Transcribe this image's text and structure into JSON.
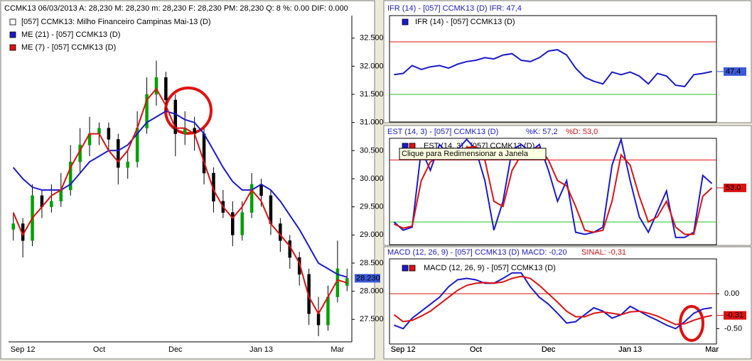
{
  "tooltip": "Clique para Redimensionar a Janela",
  "chart_data": [
    {
      "type": "candlestick",
      "title": "CCMK13   06/03/2013   A: 28,230   M: 28,230   m: 28,230   F: 28,230   PM: 28,230   Q: 8   %: 0.00   DIF: 0.000",
      "legend": "[057] CCMK13: Milho Financeiro Campinas Mai-13     (D)",
      "categories": [
        null,
        "Sep 12",
        null,
        null,
        null,
        null,
        null,
        null,
        null,
        "Oct",
        null,
        null,
        null,
        null,
        null,
        null,
        null,
        "Dec",
        null,
        null,
        null,
        null,
        null,
        null,
        null,
        null,
        "Jan 13",
        null,
        null,
        null,
        null,
        null,
        null,
        null,
        "Mar",
        null
      ],
      "open": [
        29.1,
        29.2,
        28.9,
        29.7,
        29.5,
        29.6,
        29.8,
        30.3,
        30.6,
        30.8,
        30.9,
        30.7,
        30.2,
        30.3,
        30.9,
        31.5,
        31.8,
        31.4,
        30.8,
        30.9,
        30.8,
        30.1,
        29.6,
        29.4,
        29.0,
        29.4,
        29.9,
        29.7,
        29.2,
        28.9,
        28.6,
        28.3,
        27.6,
        27.4,
        27.9,
        28.1
      ],
      "high": [
        29.4,
        29.3,
        29.9,
        29.8,
        29.9,
        30.1,
        30.6,
        30.9,
        31.1,
        31.0,
        31.0,
        30.8,
        30.5,
        31.2,
        31.8,
        32.1,
        31.9,
        31.5,
        31.2,
        31.1,
        30.9,
        30.2,
        29.8,
        29.6,
        29.6,
        30.1,
        30.0,
        29.8,
        29.3,
        29.0,
        28.7,
        28.4,
        27.9,
        28.1,
        28.9,
        28.4
      ],
      "low": [
        28.9,
        28.6,
        28.8,
        29.3,
        29.4,
        29.5,
        29.7,
        30.1,
        30.4,
        30.6,
        30.5,
        29.9,
        30.0,
        30.2,
        30.8,
        31.3,
        31.2,
        30.4,
        30.6,
        30.5,
        29.9,
        29.4,
        29.3,
        28.8,
        28.9,
        29.3,
        29.5,
        29.0,
        28.7,
        28.4,
        28.1,
        27.4,
        27.2,
        27.3,
        27.8,
        28.0
      ],
      "close": [
        29.2,
        28.9,
        29.7,
        29.5,
        29.6,
        29.8,
        30.3,
        30.6,
        30.8,
        30.9,
        30.7,
        30.2,
        30.3,
        30.9,
        31.5,
        31.8,
        31.4,
        30.8,
        30.9,
        30.8,
        30.1,
        29.6,
        29.4,
        29.0,
        29.4,
        29.9,
        29.7,
        29.2,
        28.9,
        28.6,
        28.3,
        27.6,
        27.4,
        27.9,
        28.4,
        28.23
      ],
      "value_labels": [
        null,
        null,
        null,
        null,
        null,
        null,
        null,
        null,
        null,
        null,
        null,
        null,
        null,
        null,
        null,
        null,
        null,
        null,
        null,
        null,
        null,
        null,
        null,
        null,
        null,
        null,
        null,
        null,
        null,
        null,
        null,
        null,
        null,
        null,
        null,
        "28.230"
      ],
      "up_color": "#00a000",
      "down_color": "#000000",
      "marker_color": "#3a5ad8",
      "series": [
        {
          "name": "ME (21)  - [057] CCMK13 (D)",
          "color": "#1a1acc",
          "values": [
            30.2,
            30.0,
            29.85,
            29.8,
            29.8,
            29.8,
            29.9,
            30.1,
            30.3,
            30.4,
            30.5,
            30.5,
            30.6,
            30.8,
            31.0,
            31.1,
            31.2,
            31.15,
            31.05,
            31.0,
            30.8,
            30.5,
            30.2,
            29.95,
            29.8,
            29.8,
            29.9,
            29.8,
            29.6,
            29.35,
            29.1,
            28.8,
            28.5,
            28.4,
            28.3,
            28.25
          ]
        },
        {
          "name": "ME (7)  - [057] CCMK13 (D)",
          "color": "#dd1111",
          "values": [
            29.4,
            29.0,
            29.3,
            29.5,
            29.7,
            29.8,
            30.2,
            30.5,
            30.8,
            30.8,
            30.5,
            30.3,
            30.5,
            30.9,
            31.4,
            31.6,
            31.3,
            30.9,
            30.9,
            30.8,
            30.3,
            29.8,
            29.5,
            29.3,
            29.5,
            29.8,
            29.6,
            29.2,
            29.0,
            28.8,
            28.5,
            27.9,
            27.6,
            27.9,
            28.2,
            28.15
          ]
        }
      ],
      "ylim": [
        27.1,
        32.9
      ],
      "yticks": [
        {
          "value": 27.5,
          "label": "27.500"
        },
        {
          "value": 28,
          "label": "28.000"
        },
        {
          "value": 28.5,
          "label": "28.500"
        },
        {
          "value": 29,
          "label": "29.000"
        },
        {
          "value": 29.5,
          "label": "29.500"
        },
        {
          "value": 30,
          "label": "30.000"
        },
        {
          "value": 30.5,
          "label": "30.500"
        },
        {
          "value": 31,
          "label": "31.000"
        },
        {
          "value": 31.5,
          "label": "31.500"
        },
        {
          "value": 32,
          "label": "32.000"
        },
        {
          "value": 32.5,
          "label": "32.500"
        }
      ]
    },
    {
      "type": "line",
      "title": "IFR (14)  - [057] CCMK13 (D)   IFR: 47,4",
      "legend": "IFR (14)  - [057] CCMK13 (D)",
      "categories": [
        null,
        "Sep 12",
        null,
        null,
        null,
        null,
        null,
        null,
        null,
        "Oct",
        null,
        null,
        null,
        null,
        null,
        null,
        null,
        "Dec",
        null,
        null,
        null,
        null,
        null,
        null,
        null,
        null,
        "Jan 13",
        null,
        null,
        null,
        null,
        null,
        null,
        null,
        null,
        "Mar"
      ],
      "series": [
        {
          "color": "#1a1acc",
          "marker_color": "#3a5ad8",
          "values": [
            45,
            46,
            52,
            49,
            51,
            52,
            50,
            53,
            55,
            56,
            58,
            57,
            60,
            61,
            56,
            55,
            58,
            63,
            64,
            60,
            50,
            43,
            40,
            38,
            47,
            45,
            47,
            44,
            38,
            46,
            44,
            37,
            36,
            45,
            46,
            47.4
          ],
          "value_labels": [
            null,
            null,
            null,
            null,
            null,
            null,
            null,
            null,
            null,
            null,
            null,
            null,
            null,
            null,
            null,
            null,
            null,
            null,
            null,
            null,
            null,
            null,
            null,
            null,
            null,
            null,
            null,
            null,
            null,
            null,
            null,
            null,
            null,
            null,
            null,
            "47.4"
          ]
        }
      ],
      "hlines": [
        {
          "value": 70,
          "color": "#dd1111"
        },
        {
          "value": 30,
          "color": "#20c020"
        }
      ],
      "ylim": [
        9,
        90
      ]
    },
    {
      "type": "line",
      "title": "EST (14, 3)  - [057] CCMK13 (D)",
      "title_parts": [
        "%K: 57,2",
        "%D: 53,0"
      ],
      "legend": "EST (14, 3)  - [057] CCMK13 (D)",
      "categories": [
        null,
        "Sep 12",
        null,
        null,
        null,
        null,
        null,
        null,
        null,
        "Oct",
        null,
        null,
        null,
        null,
        null,
        null,
        null,
        "Dec",
        null,
        null,
        null,
        null,
        null,
        null,
        null,
        null,
        "Jan 13",
        null,
        null,
        null,
        null,
        null,
        null,
        null,
        null,
        "Mar"
      ],
      "series": [
        {
          "color": "#1a1acc",
          "values": [
            20,
            12,
            15,
            90,
            70,
            95,
            85,
            90,
            100,
            90,
            60,
            12,
            40,
            90,
            95,
            88,
            95,
            70,
            40,
            60,
            10,
            8,
            10,
            15,
            75,
            100,
            60,
            25,
            10,
            30,
            50,
            5,
            5,
            10,
            65,
            57.2
          ]
        },
        {
          "color": "#dd1111",
          "marker_color": "#dd1111",
          "values": [
            18,
            14,
            16,
            60,
            78,
            85,
            83,
            88,
            92,
            93,
            80,
            40,
            35,
            70,
            85,
            90,
            92,
            80,
            60,
            55,
            35,
            12,
            10,
            12,
            40,
            85,
            75,
            45,
            20,
            25,
            40,
            15,
            8,
            8,
            45,
            53
          ],
          "value_labels": [
            null,
            null,
            null,
            null,
            null,
            null,
            null,
            null,
            null,
            null,
            null,
            null,
            null,
            null,
            null,
            null,
            null,
            null,
            null,
            null,
            null,
            null,
            null,
            null,
            null,
            null,
            null,
            null,
            null,
            null,
            null,
            null,
            null,
            null,
            null,
            "53.0"
          ]
        }
      ],
      "hlines": [
        {
          "value": 80,
          "color": "#dd1111"
        },
        {
          "value": 20,
          "color": "#20c020"
        }
      ],
      "ylim": [
        -2,
        101
      ]
    },
    {
      "type": "line",
      "title": "MACD (12, 26, 9)  - [057] CCMK13 (D)   MACD: -0,20",
      "title_parts": [
        "SINAL: -0,31"
      ],
      "legend": "MACD (12, 26, 9)  - [057] CCMK13 (D)",
      "categories": [
        null,
        "Sep 12",
        null,
        null,
        null,
        null,
        null,
        null,
        null,
        "Oct",
        null,
        null,
        null,
        null,
        null,
        null,
        null,
        "Dec",
        null,
        null,
        null,
        null,
        null,
        null,
        null,
        null,
        "Jan 13",
        null,
        null,
        null,
        null,
        null,
        null,
        null,
        null,
        "Mar"
      ],
      "series": [
        {
          "color": "#1a1acc",
          "values": [
            -0.45,
            -0.5,
            -0.35,
            -0.25,
            -0.15,
            -0.05,
            0.1,
            0.2,
            0.22,
            0.2,
            0.15,
            0.15,
            0.22,
            0.3,
            0.3,
            0.1,
            -0.05,
            -0.15,
            -0.28,
            -0.42,
            -0.4,
            -0.3,
            -0.2,
            -0.25,
            -0.35,
            -0.3,
            -0.18,
            -0.25,
            -0.32,
            -0.38,
            -0.45,
            -0.5,
            -0.4,
            -0.28,
            -0.22,
            -0.2
          ]
        },
        {
          "color": "#dd1111",
          "marker_color": "#dd1111",
          "values": [
            -0.3,
            -0.4,
            -0.38,
            -0.32,
            -0.25,
            -0.15,
            -0.05,
            0.05,
            0.12,
            0.15,
            0.16,
            0.15,
            0.17,
            0.22,
            0.25,
            0.22,
            0.12,
            0.0,
            -0.12,
            -0.25,
            -0.33,
            -0.33,
            -0.28,
            -0.26,
            -0.28,
            -0.3,
            -0.26,
            -0.25,
            -0.28,
            -0.32,
            -0.38,
            -0.44,
            -0.43,
            -0.38,
            -0.34,
            -0.31
          ],
          "value_labels": [
            null,
            null,
            null,
            null,
            null,
            null,
            null,
            null,
            null,
            null,
            null,
            null,
            null,
            null,
            null,
            null,
            null,
            null,
            null,
            null,
            null,
            null,
            null,
            null,
            null,
            null,
            null,
            null,
            null,
            null,
            null,
            null,
            null,
            null,
            null,
            "-0.31"
          ]
        }
      ],
      "hlines": [
        {
          "value": 0,
          "color": "#dd1111"
        }
      ],
      "ylim": [
        -0.72,
        0.5
      ],
      "yticks": [
        {
          "value": 0,
          "label": "0.00"
        },
        {
          "value": -0.5,
          "label": "-0.50"
        }
      ]
    }
  ]
}
